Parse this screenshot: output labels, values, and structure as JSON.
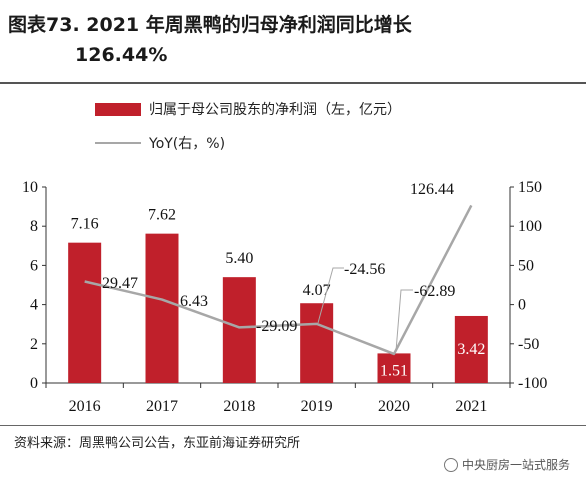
{
  "figure": {
    "title_line1": "图表73. 2021 年周黑鸭的归母净利润同比增长",
    "title_line2": "126.44%",
    "source": "资料来源：周黑鸭公司公告，东亚前海证券研究所",
    "watermark": "中央厨房一站式服务"
  },
  "chart_data": {
    "type": "bar",
    "categories": [
      "2016",
      "2017",
      "2018",
      "2019",
      "2020",
      "2021"
    ],
    "series": [
      {
        "name": "归属于母公司股东的净利润（左，亿元）",
        "kind": "bar",
        "axis": "left",
        "values": [
          7.16,
          7.62,
          5.4,
          4.07,
          1.51,
          3.42
        ],
        "labels": [
          "7.16",
          "7.62",
          "5.40",
          "4.07",
          "1.51",
          "3.42"
        ],
        "color": "#c0202b"
      },
      {
        "name": "YoY(右，%)",
        "kind": "line",
        "axis": "right",
        "values": [
          29.47,
          6.43,
          -29.09,
          -24.56,
          -62.89,
          126.44
        ],
        "labels": [
          "29.47",
          "6.43",
          "-29.09",
          "-24.56",
          "-62.89",
          "126.44"
        ],
        "color": "#a7a7a7"
      }
    ],
    "y_left": {
      "ylim": [
        0,
        10
      ],
      "ticks": [
        "0",
        "2",
        "4",
        "6",
        "8",
        "10"
      ]
    },
    "y_right": {
      "ylim": [
        -100,
        150
      ],
      "ticks": [
        "-100",
        "-50",
        "0",
        "50",
        "100",
        "150"
      ]
    },
    "grid": false,
    "legend_position": "top"
  }
}
